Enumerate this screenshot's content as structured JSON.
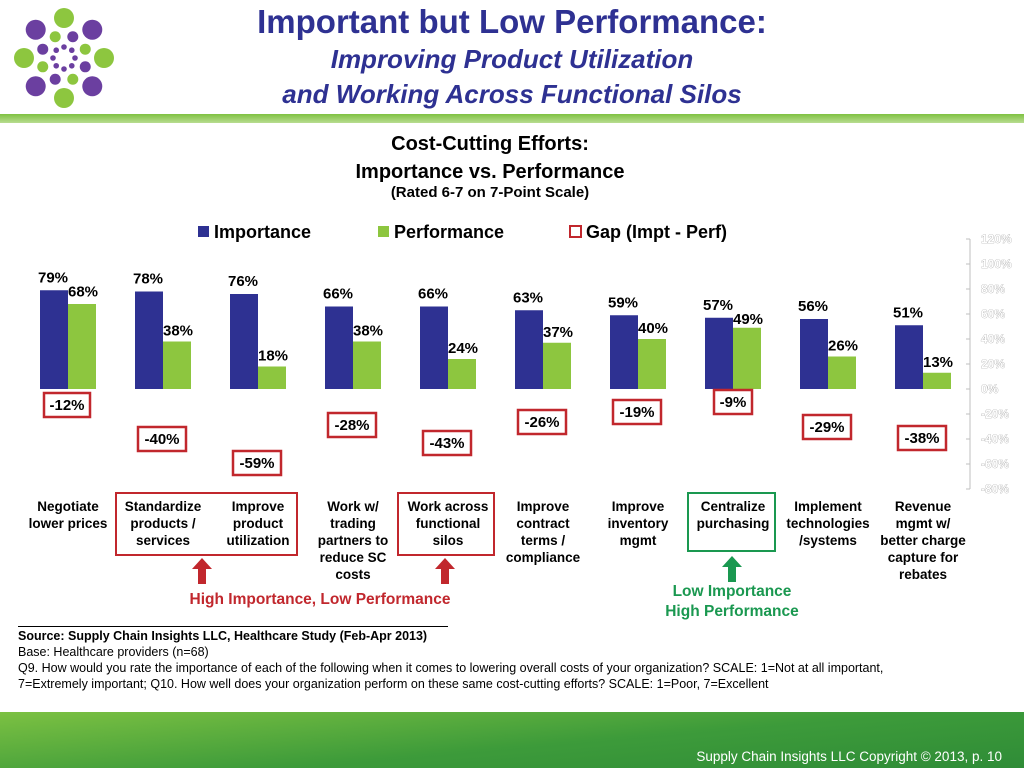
{
  "header": {
    "title": "Important but Low Performance:",
    "subtitle_line1": "Improving Product Utilization",
    "subtitle_line2": "and Working Across Functional Silos"
  },
  "colors": {
    "importance": "#2e3192",
    "performance": "#8dc63f",
    "gap_border": "#c1272d",
    "high_importance": "#c1272d",
    "low_importance": "#1a9850"
  },
  "chart_data": {
    "type": "bar",
    "title": "Cost-Cutting Efforts:",
    "subtitle": "Importance vs. Performance",
    "note": "(Rated 6-7 on 7-Point Scale)",
    "ylim": [
      -80,
      120
    ],
    "yticks": [
      "120%",
      "100%",
      "80%",
      "60%",
      "40%",
      "20%",
      "0%",
      "-20%",
      "-40%",
      "-60%",
      "-80%"
    ],
    "legend": [
      "Importance",
      "Performance",
      "Gap (Impt - Perf)"
    ],
    "categories": [
      [
        "Negotiate",
        "lower prices"
      ],
      [
        "Standardize",
        "products /",
        "services"
      ],
      [
        "Improve",
        "product",
        "utilization"
      ],
      [
        "Work w/",
        "trading",
        "partners to",
        "reduce SC",
        "costs"
      ],
      [
        "Work across",
        "functional",
        "silos"
      ],
      [
        "Improve",
        "contract",
        "terms /",
        "compliance"
      ],
      [
        "Improve",
        "inventory",
        "mgmt"
      ],
      [
        "Centralize",
        "purchasing"
      ],
      [
        "Implement",
        "technologies",
        "/systems"
      ],
      [
        "Revenue",
        "mgmt w/",
        "better charge",
        "capture for",
        "rebates"
      ]
    ],
    "series": [
      {
        "name": "Importance",
        "values": [
          79,
          78,
          76,
          66,
          66,
          63,
          59,
          57,
          56,
          51
        ]
      },
      {
        "name": "Performance",
        "values": [
          68,
          38,
          18,
          38,
          24,
          37,
          40,
          49,
          26,
          13
        ]
      },
      {
        "name": "Gap (Impt - Perf)",
        "values": [
          -12,
          -40,
          -59,
          -28,
          -43,
          -26,
          -19,
          -9,
          -29,
          -38
        ]
      }
    ],
    "importance_labels": [
      "79%",
      "78%",
      "76%",
      "66%",
      "66%",
      "63%",
      "59%",
      "57%",
      "56%",
      "51%"
    ],
    "performance_labels": [
      "68%",
      "38%",
      "18%",
      "38%",
      "24%",
      "37%",
      "40%",
      "49%",
      "26%",
      "13%"
    ],
    "gap_labels": [
      "-12%",
      "-40%",
      "-59%",
      "-28%",
      "-43%",
      "-26%",
      "-19%",
      "-9%",
      "-29%",
      "-38%"
    ]
  },
  "annotations": {
    "high": "High Importance, Low Performance",
    "low_line1": "Low Importance",
    "low_line2": "High Performance"
  },
  "footnotes": {
    "source": "Source:  Supply Chain Insights LLC, Healthcare Study (Feb-Apr 2013)",
    "base": "Base:  Healthcare providers (n=68)",
    "q_line1": "Q9. How would you rate the importance of each of the following when it comes to lowering overall costs of your organization? SCALE:  1=Not at all important,",
    "q_line2": "7=Extremely important; Q10. How well does your organization perform on these same cost-cutting efforts? SCALE: 1=Poor, 7=Excellent"
  },
  "footer": {
    "copyright": "Supply Chain Insights LLC Copyright © 2013, p. 10"
  }
}
